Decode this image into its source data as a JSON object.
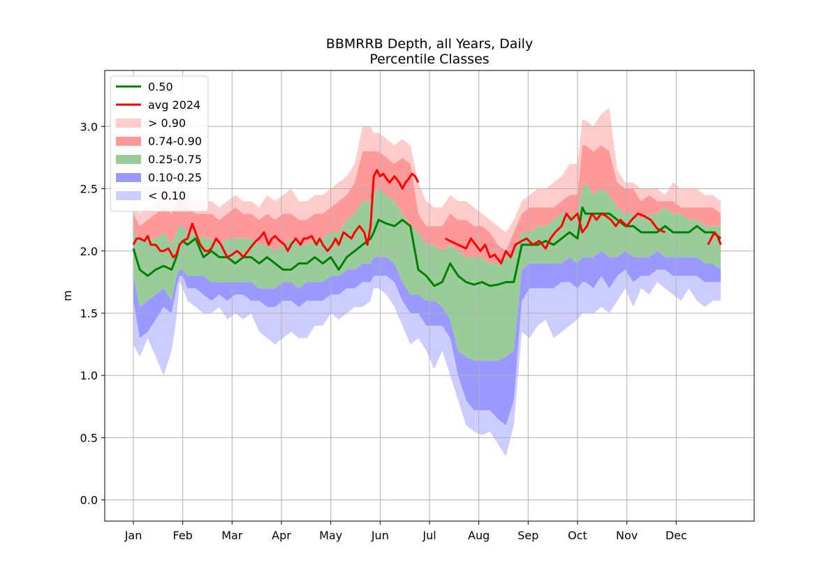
{
  "chart_data": {
    "type": "area",
    "title_line1": "BBMRRB Depth, all Years, Daily",
    "title_line2": "Percentile Classes",
    "xlabel": "",
    "ylabel": "m",
    "ylim": [
      -0.17,
      3.45
    ],
    "y_ticks": [
      {
        "value": 0.0,
        "label": "0.0"
      },
      {
        "value": 0.5,
        "label": "0.5"
      },
      {
        "value": 1.0,
        "label": "1.0"
      },
      {
        "value": 1.5,
        "label": "1.5"
      },
      {
        "value": 2.0,
        "label": "2.0"
      },
      {
        "value": 2.5,
        "label": "2.5"
      },
      {
        "value": 3.0,
        "label": "3.0"
      }
    ],
    "x_ticks": [
      {
        "day": 1,
        "label": "Jan"
      },
      {
        "day": 32,
        "label": "Feb"
      },
      {
        "day": 63,
        "label": "Mar"
      },
      {
        "day": 94,
        "label": "Apr"
      },
      {
        "day": 125,
        "label": "May"
      },
      {
        "day": 156,
        "label": "Jun"
      },
      {
        "day": 187,
        "label": "Jul"
      },
      {
        "day": 218,
        "label": "Aug"
      },
      {
        "day": 249,
        "label": "Sep"
      },
      {
        "day": 280,
        "label": "Oct"
      },
      {
        "day": 311,
        "label": "Nov"
      },
      {
        "day": 342,
        "label": "Dec"
      }
    ],
    "xlim": [
      -17,
      391
    ],
    "grid": true,
    "legend_position": "upper-left",
    "legend": [
      {
        "label": "0.50",
        "kind": "line",
        "color": "#008000"
      },
      {
        "label": "avg 2024",
        "kind": "line",
        "color": "#ff0000"
      },
      {
        "label": "> 0.90",
        "kind": "patch",
        "color": "#ffcccc"
      },
      {
        "label": "0.74-0.90",
        "kind": "patch",
        "color": "#ff9999"
      },
      {
        "label": "0.25-0.75",
        "kind": "patch",
        "color": "#99cc99"
      },
      {
        "label": "0.10-0.25",
        "kind": "patch",
        "color": "#9999ff"
      },
      {
        "label": "< 0.10",
        "kind": "patch",
        "color": "#ccccff"
      }
    ],
    "colors": {
      "p90_plus": "#ffcccc",
      "p74_90": "#ff9999",
      "p25_75": "#99cc99",
      "p10_25": "#9999ff",
      "p_below_10": "#ccccff",
      "median": "#008000",
      "avg2024": "#ff0000"
    },
    "day_of_year": [
      1,
      5,
      10,
      15,
      20,
      25,
      28,
      30,
      32,
      35,
      40,
      45,
      50,
      55,
      60,
      65,
      70,
      75,
      80,
      85,
      90,
      95,
      100,
      105,
      110,
      115,
      120,
      125,
      130,
      135,
      140,
      145,
      150,
      152,
      155,
      160,
      165,
      170,
      175,
      180,
      185,
      190,
      195,
      200,
      205,
      210,
      215,
      220,
      225,
      230,
      235,
      240,
      245,
      250,
      255,
      260,
      265,
      270,
      275,
      280,
      283,
      285,
      290,
      295,
      300,
      305,
      310,
      315,
      320,
      325,
      330,
      335,
      340,
      345,
      350,
      355,
      360,
      365,
      370
    ],
    "series": [
      {
        "name": "< 0.10",
        "role": "min",
        "values": [
          1.25,
          1.15,
          1.3,
          1.15,
          1.0,
          1.2,
          1.45,
          1.75,
          1.7,
          1.6,
          1.55,
          1.5,
          1.5,
          1.55,
          1.45,
          1.5,
          1.45,
          1.5,
          1.35,
          1.3,
          1.25,
          1.3,
          1.35,
          1.3,
          1.3,
          1.4,
          1.4,
          1.5,
          1.45,
          1.5,
          1.55,
          1.55,
          1.6,
          1.7,
          1.7,
          1.65,
          1.55,
          1.4,
          1.25,
          1.3,
          1.2,
          1.05,
          1.2,
          1.0,
          0.8,
          0.6,
          0.55,
          0.52,
          0.55,
          0.45,
          0.35,
          0.6,
          1.35,
          1.3,
          1.4,
          1.45,
          1.3,
          1.35,
          1.4,
          1.45,
          1.5,
          1.5,
          1.5,
          1.55,
          1.5,
          1.6,
          1.7,
          1.55,
          1.7,
          1.65,
          1.75,
          1.7,
          1.65,
          1.6,
          1.7,
          1.6,
          1.55,
          1.6,
          1.6
        ]
      },
      {
        "name": "0.10-0.25",
        "role": "p10",
        "values": [
          1.6,
          1.3,
          1.35,
          1.45,
          1.55,
          1.5,
          1.7,
          1.8,
          1.8,
          1.7,
          1.7,
          1.65,
          1.6,
          1.65,
          1.6,
          1.65,
          1.65,
          1.6,
          1.6,
          1.55,
          1.55,
          1.6,
          1.6,
          1.55,
          1.6,
          1.6,
          1.6,
          1.65,
          1.65,
          1.7,
          1.7,
          1.75,
          1.75,
          1.8,
          1.8,
          1.8,
          1.75,
          1.6,
          1.5,
          1.5,
          1.4,
          1.4,
          1.4,
          1.3,
          1.0,
          0.8,
          0.72,
          0.72,
          0.72,
          0.65,
          0.6,
          0.8,
          1.6,
          1.7,
          1.7,
          1.7,
          1.7,
          1.75,
          1.75,
          1.7,
          1.75,
          1.75,
          1.7,
          1.8,
          1.7,
          1.8,
          1.85,
          1.75,
          1.8,
          1.8,
          1.85,
          1.85,
          1.8,
          1.8,
          1.8,
          1.8,
          1.75,
          1.75,
          1.75
        ]
      },
      {
        "name": "0.25-0.75",
        "role": "p25",
        "values": [
          1.8,
          1.55,
          1.6,
          1.65,
          1.7,
          1.6,
          1.8,
          1.85,
          1.85,
          1.8,
          1.8,
          1.8,
          1.75,
          1.75,
          1.75,
          1.75,
          1.75,
          1.75,
          1.7,
          1.7,
          1.7,
          1.75,
          1.75,
          1.7,
          1.75,
          1.75,
          1.75,
          1.8,
          1.8,
          1.85,
          1.85,
          1.9,
          1.9,
          1.95,
          1.95,
          1.95,
          1.9,
          1.75,
          1.65,
          1.65,
          1.6,
          1.6,
          1.55,
          1.45,
          1.2,
          1.15,
          1.12,
          1.12,
          1.12,
          1.12,
          1.15,
          1.2,
          1.85,
          1.9,
          1.9,
          1.9,
          1.9,
          1.9,
          1.95,
          1.9,
          1.95,
          1.95,
          1.95,
          2.0,
          1.95,
          1.95,
          2.0,
          1.95,
          1.95,
          1.95,
          2.0,
          1.95,
          1.95,
          1.95,
          1.95,
          1.95,
          1.9,
          1.9,
          1.85
        ]
      },
      {
        "name": "0.74-0.90",
        "role": "p75",
        "values": [
          2.15,
          2.1,
          2.1,
          2.1,
          2.15,
          2.05,
          2.15,
          2.2,
          2.2,
          2.15,
          2.15,
          2.1,
          2.1,
          2.05,
          2.1,
          2.1,
          2.1,
          2.1,
          2.05,
          2.05,
          2.0,
          2.05,
          2.1,
          2.05,
          2.05,
          2.1,
          2.1,
          2.15,
          2.15,
          2.25,
          2.3,
          2.4,
          2.4,
          2.45,
          2.5,
          2.45,
          2.4,
          2.3,
          2.2,
          2.15,
          2.05,
          2.05,
          2.0,
          2.05,
          2.0,
          1.95,
          1.95,
          1.95,
          1.9,
          1.9,
          1.95,
          2.0,
          2.15,
          2.15,
          2.2,
          2.2,
          2.25,
          2.3,
          2.3,
          2.3,
          2.5,
          2.55,
          2.45,
          2.5,
          2.45,
          2.35,
          2.3,
          2.3,
          2.25,
          2.3,
          2.3,
          2.35,
          2.3,
          2.3,
          2.25,
          2.25,
          2.2,
          2.2,
          2.2
        ]
      },
      {
        "name": "> 0.90",
        "role": "p90",
        "values": [
          2.3,
          2.2,
          2.25,
          2.3,
          2.35,
          2.3,
          2.4,
          2.45,
          2.4,
          2.35,
          2.3,
          2.3,
          2.3,
          2.25,
          2.3,
          2.35,
          2.3,
          2.3,
          2.25,
          2.3,
          2.25,
          2.3,
          2.3,
          2.25,
          2.25,
          2.3,
          2.3,
          2.35,
          2.4,
          2.45,
          2.55,
          2.8,
          2.8,
          2.8,
          2.8,
          2.75,
          2.7,
          2.75,
          2.7,
          2.3,
          2.2,
          2.2,
          2.2,
          2.3,
          2.25,
          2.25,
          2.2,
          2.2,
          2.15,
          2.05,
          2.0,
          2.15,
          2.3,
          2.35,
          2.35,
          2.35,
          2.35,
          2.4,
          2.45,
          2.45,
          2.85,
          2.85,
          2.8,
          2.85,
          2.8,
          2.55,
          2.5,
          2.5,
          2.4,
          2.45,
          2.4,
          2.4,
          2.4,
          2.35,
          2.35,
          2.35,
          2.35,
          2.35,
          2.3
        ]
      },
      {
        "name": "",
        "role": "max",
        "values": [
          2.4,
          2.3,
          2.35,
          2.4,
          2.45,
          2.4,
          2.5,
          2.6,
          2.5,
          2.45,
          2.4,
          2.4,
          2.4,
          2.35,
          2.4,
          2.45,
          2.4,
          2.4,
          2.35,
          2.45,
          2.4,
          2.45,
          2.5,
          2.4,
          2.4,
          2.45,
          2.45,
          2.5,
          2.55,
          2.6,
          2.7,
          3.0,
          3.0,
          2.95,
          2.95,
          2.9,
          2.85,
          2.9,
          2.85,
          2.55,
          2.4,
          2.35,
          2.35,
          2.45,
          2.4,
          2.4,
          2.35,
          2.3,
          2.25,
          2.2,
          2.15,
          2.25,
          2.4,
          2.45,
          2.5,
          2.5,
          2.55,
          2.6,
          2.7,
          2.7,
          3.05,
          3.05,
          3.0,
          3.1,
          3.15,
          2.65,
          2.55,
          2.55,
          2.5,
          2.5,
          2.5,
          2.45,
          2.55,
          2.5,
          2.5,
          2.5,
          2.45,
          2.45,
          2.4
        ]
      },
      {
        "name": "0.50",
        "role": "median",
        "values": [
          2.02,
          1.85,
          1.8,
          1.85,
          1.88,
          1.85,
          1.95,
          2.05,
          2.08,
          2.05,
          2.1,
          1.95,
          2.0,
          1.95,
          1.95,
          1.9,
          1.95,
          1.95,
          1.9,
          1.95,
          1.9,
          1.85,
          1.85,
          1.9,
          1.9,
          1.95,
          1.9,
          1.95,
          1.85,
          1.95,
          2.0,
          2.05,
          2.1,
          2.15,
          2.25,
          2.22,
          2.2,
          2.25,
          2.2,
          1.85,
          1.8,
          1.72,
          1.75,
          1.9,
          1.8,
          1.75,
          1.73,
          1.75,
          1.72,
          1.73,
          1.75,
          1.75,
          2.05,
          2.05,
          2.05,
          2.08,
          2.05,
          2.1,
          2.15,
          2.1,
          2.35,
          2.3,
          2.3,
          2.3,
          2.3,
          2.25,
          2.2,
          2.2,
          2.15,
          2.15,
          2.15,
          2.2,
          2.15,
          2.15,
          2.15,
          2.2,
          2.15,
          2.15,
          2.1
        ]
      },
      {
        "name": "avg 2024",
        "role": "avg",
        "segments": [
          {
            "days": [
              1,
              3,
              5,
              8,
              10,
              12,
              15,
              18,
              20,
              23,
              26,
              28,
              30,
              32,
              35,
              38,
              40,
              43,
              46,
              48,
              50,
              53,
              56,
              58,
              60,
              63,
              66,
              68,
              70,
              73,
              76,
              78,
              80,
              83,
              86,
              88,
              90,
              93,
              96,
              98,
              100,
              103,
              106,
              108,
              110,
              113,
              116,
              118,
              120,
              123,
              126,
              128,
              130,
              133,
              136,
              138,
              140,
              143,
              146,
              148,
              150,
              151,
              152,
              154,
              156,
              158,
              160,
              162,
              165,
              168,
              170,
              172,
              174,
              176,
              178,
              180
            ],
            "values": [
              2.05,
              2.1,
              2.1,
              2.08,
              2.12,
              2.05,
              2.05,
              2.0,
              2.0,
              2.02,
              1.95,
              1.97,
              2.05,
              2.08,
              2.1,
              2.22,
              2.15,
              2.05,
              2.0,
              2.0,
              2.02,
              2.1,
              2.05,
              2.0,
              1.95,
              1.97,
              2.0,
              1.98,
              1.95,
              2.0,
              2.05,
              2.08,
              2.1,
              2.15,
              2.05,
              2.1,
              2.12,
              2.08,
              2.05,
              2.0,
              2.05,
              2.1,
              2.05,
              2.1,
              2.1,
              2.12,
              2.05,
              2.1,
              2.05,
              2.0,
              2.05,
              2.1,
              2.05,
              2.15,
              2.12,
              2.1,
              2.15,
              2.2,
              2.15,
              2.05,
              2.2,
              2.4,
              2.6,
              2.65,
              2.6,
              2.62,
              2.58,
              2.55,
              2.6,
              2.55,
              2.5,
              2.55,
              2.58,
              2.62,
              2.6,
              2.55
            ]
          },
          {
            "days": [
              197,
              200,
              205,
              210,
              213,
              216,
              219,
              222,
              225,
              228,
              232,
              235,
              238,
              241,
              245,
              248,
              252,
              256,
              260,
              263,
              266,
              270,
              273,
              276,
              280,
              283,
              286,
              289,
              292,
              295,
              298,
              301,
              304,
              307,
              311,
              314,
              318,
              322,
              326,
              330,
              335
            ],
            "values": [
              2.1,
              2.08,
              2.05,
              2.02,
              2.1,
              2.05,
              2.0,
              2.05,
              1.95,
              1.97,
              1.9,
              2.0,
              1.95,
              2.05,
              2.08,
              2.1,
              2.05,
              2.08,
              2.02,
              2.1,
              2.15,
              2.2,
              2.3,
              2.25,
              2.3,
              2.15,
              2.2,
              2.3,
              2.25,
              2.3,
              2.28,
              2.25,
              2.2,
              2.25,
              2.2,
              2.25,
              2.3,
              2.28,
              2.25,
              2.18,
              2.15
            ]
          },
          {
            "days": [
              362,
              364,
              366,
              368,
              370
            ],
            "values": [
              2.05,
              2.1,
              2.15,
              2.12,
              2.05
            ]
          }
        ]
      }
    ]
  }
}
